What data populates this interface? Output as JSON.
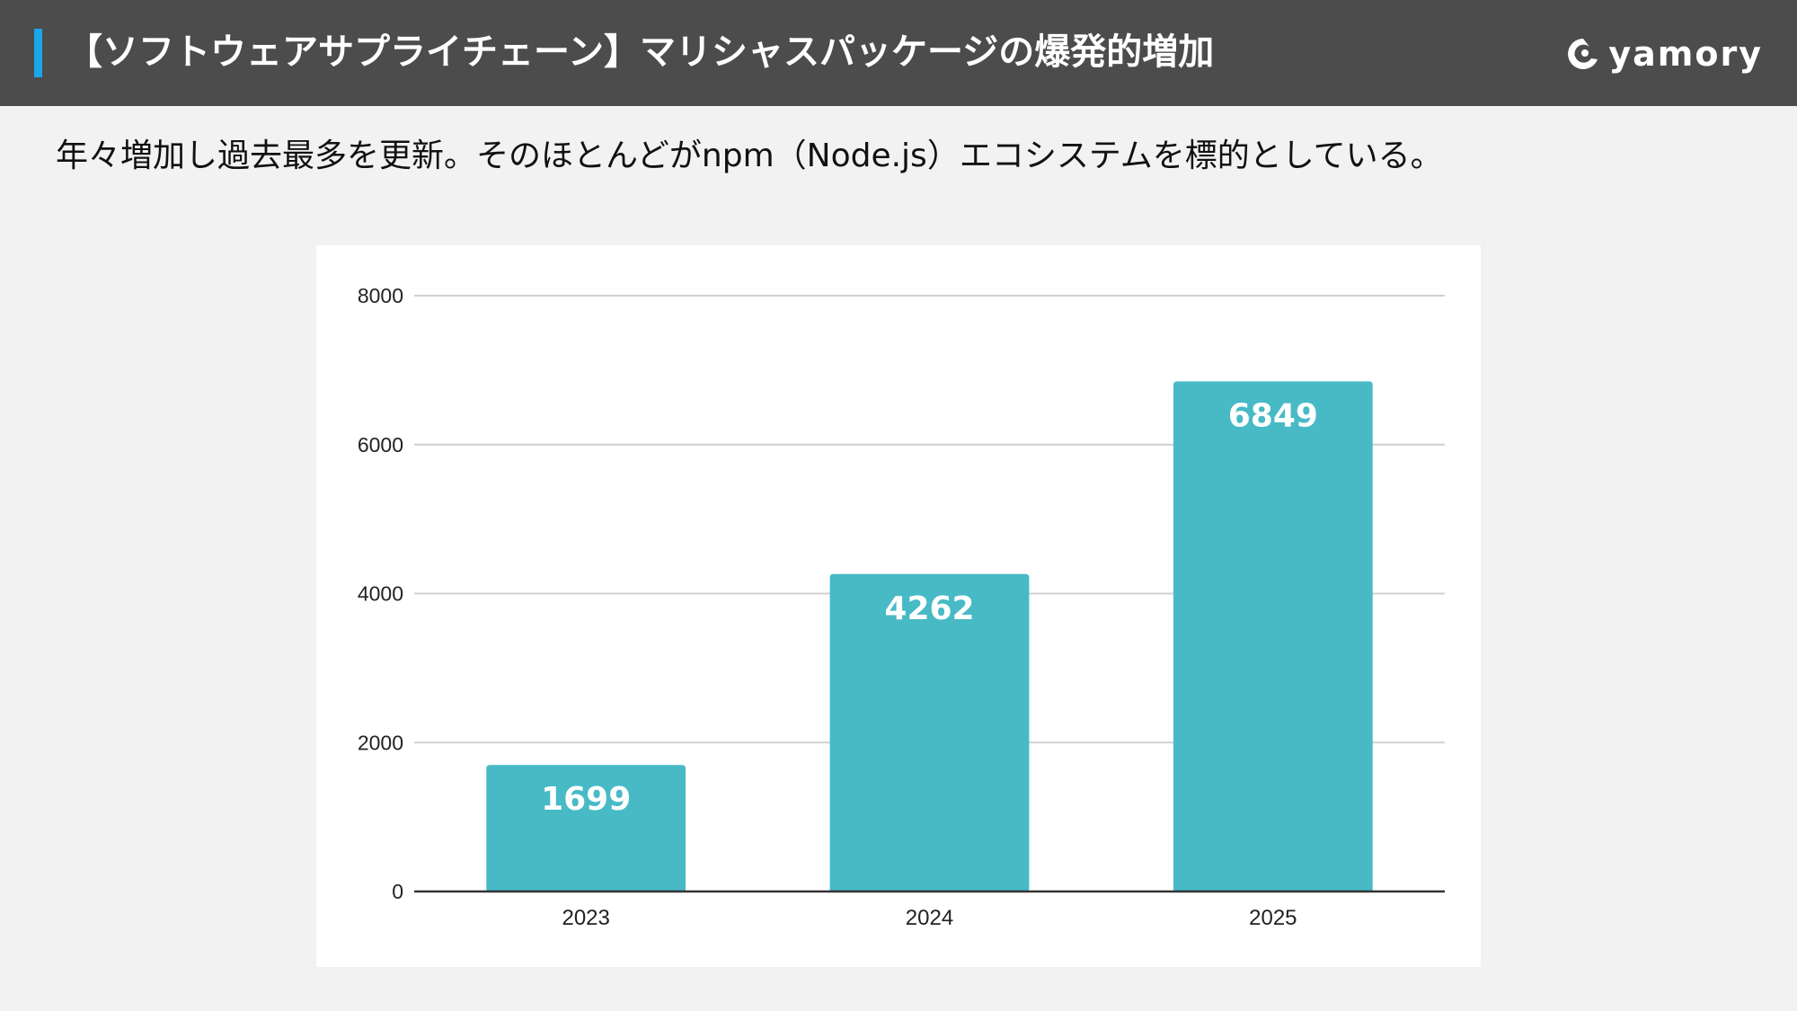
{
  "header": {
    "title": "【ソフトウェアサプライチェーン】マリシャスパッケージの爆発的増加",
    "logo_text": "yamory",
    "logo_icon": "yamory-eye-logo-icon",
    "accent_color": "#1aa6e8",
    "background_color": "#4c4c4c"
  },
  "subtitle": "年々増加し過去最多を更新。そのほとんどがnpm（Node.js）エコシステムを標的としている。",
  "chart_data": {
    "type": "bar",
    "title": "",
    "xlabel": "",
    "ylabel": "",
    "categories": [
      "2023",
      "2024",
      "2025"
    ],
    "values": [
      1699,
      4262,
      6849
    ],
    "data_labels": [
      "1699",
      "4262",
      "6849"
    ],
    "ylim": [
      0,
      8000
    ],
    "yticks": [
      0,
      2000,
      4000,
      6000,
      8000
    ],
    "ytick_labels": [
      "0",
      "2000",
      "4000",
      "6000",
      "8000"
    ],
    "grid": true,
    "legend": "none",
    "bar_color": "#47bac6"
  }
}
